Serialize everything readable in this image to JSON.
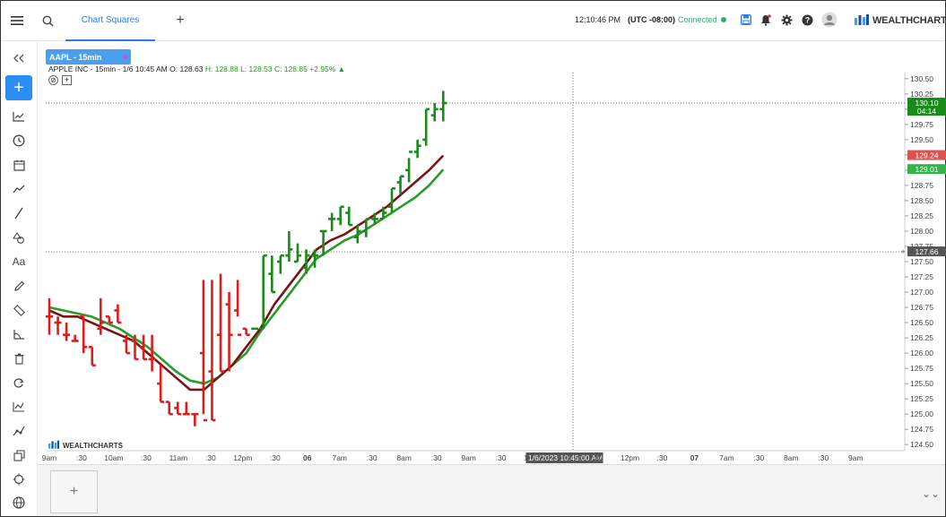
{
  "header": {
    "tab_label": "Chart Squares",
    "add_tab": "+",
    "time": "12:10:46 PM",
    "timezone": "(UTC -08:00)",
    "connection": "Connected",
    "brand": "WEALTHCHARTS"
  },
  "sidebar": {
    "items": [
      "collapse-icon",
      "add",
      "indicators-icon",
      "clock-icon",
      "calendar-icon",
      "trend-icon",
      "line-icon",
      "shapes-icon",
      "text-icon",
      "pencil-icon",
      "ruler-icon",
      "angle-icon",
      "trash-icon",
      "sync-icon",
      "chart-icon",
      "nodes-icon",
      "layers-icon",
      "crosshair-icon",
      "globe-icon"
    ]
  },
  "symbol": {
    "tab_label": "AAPL - 15min",
    "info_prefix": "APPLE INC - 15min - 1/6 10:45 AM",
    "o": "O: 128.63",
    "h": "H: 128.88",
    "l": "L: 128.53",
    "c": "C: 128.85",
    "chg": "+2.95%",
    "chg_arrow": "▲"
  },
  "chart_data": {
    "type": "bar",
    "price_axis": [
      "130.50",
      "130.25",
      "130.00",
      "129.75",
      "129.50",
      "129.25",
      "129.00",
      "128.75",
      "128.50",
      "128.25",
      "128.00",
      "127.75",
      "127.50",
      "127.25",
      "127.00",
      "126.75",
      "126.50",
      "126.25",
      "126.00",
      "125.75",
      "125.50",
      "125.25",
      "125.00",
      "124.75",
      "124.50"
    ],
    "time_axis": [
      "9am",
      ":30",
      "10am",
      ":30",
      "11am",
      ":30",
      "12pm",
      ":30",
      "06",
      "7am",
      ":30",
      "8am",
      ":30",
      "9am",
      ":30",
      "10am",
      "1/6/2023 10:45:00 AM",
      ":30",
      "12pm",
      ":30",
      "07",
      "7am",
      ":30",
      "8am",
      ":30",
      "9am"
    ],
    "price_tags": [
      {
        "value": "130.10",
        "sub": "04:14",
        "color": "#1a8a1a"
      },
      {
        "value": "129.24",
        "color": "#d9534f"
      },
      {
        "value": "129.01",
        "color": "#2fb54a"
      },
      {
        "value": "127.66",
        "color": "#555555"
      }
    ],
    "red_bars": [
      [
        126.9,
        126.3,
        126.6,
        126.6
      ],
      [
        126.6,
        126.3,
        126.5,
        126.5
      ],
      [
        126.5,
        126.2,
        126.3,
        126.3
      ],
      [
        126.3,
        126.2,
        126.2,
        126.2
      ],
      [
        126.6,
        126.0,
        126.6,
        126.1
      ],
      [
        126.1,
        125.8,
        126.1,
        125.8
      ],
      [
        126.9,
        126.3,
        126.4,
        126.5
      ],
      [
        126.6,
        126.5,
        126.6,
        126.5
      ],
      [
        126.8,
        126.5,
        126.7,
        126.5
      ],
      [
        126.3,
        126.0,
        126.2,
        126.0
      ],
      [
        126.3,
        125.9,
        126.2,
        125.9
      ],
      [
        126.3,
        125.9,
        126.1,
        125.9
      ],
      [
        126.3,
        125.7,
        125.9,
        125.9
      ],
      [
        125.8,
        125.2,
        125.5,
        125.2
      ],
      [
        125.2,
        125.0,
        125.2,
        125.0
      ],
      [
        125.2,
        125.0,
        125.1,
        125.0
      ],
      [
        125.2,
        125.0,
        125.0,
        125.0
      ],
      [
        125.0,
        124.8,
        125.0,
        125.0
      ],
      [
        127.2,
        125.0,
        126.0,
        124.9
      ],
      [
        127.2,
        124.9,
        125.7,
        124.9
      ],
      [
        127.3,
        125.7,
        126.3,
        125.7
      ],
      [
        127.0,
        125.7,
        126.8,
        126.3
      ],
      [
        127.2,
        126.6,
        126.7,
        126.3
      ],
      [
        126.4,
        126.3,
        126.4,
        126.3
      ]
    ],
    "green_bars": [
      [
        126.4,
        126.4,
        126.4,
        126.4
      ],
      [
        127.6,
        126.4,
        126.4,
        127.6
      ],
      [
        127.6,
        127.0,
        127.3,
        127.0
      ],
      [
        127.6,
        127.3,
        127.5,
        127.6
      ],
      [
        128.0,
        127.5,
        127.6,
        127.7
      ],
      [
        127.8,
        127.5,
        127.5,
        127.6
      ],
      [
        127.7,
        127.3,
        127.4,
        127.6
      ],
      [
        127.7,
        127.4,
        127.6,
        127.6
      ],
      [
        128.0,
        127.6,
        128.0,
        128.0
      ],
      [
        128.3,
        128.0,
        128.2,
        128.2
      ],
      [
        128.4,
        128.1,
        128.2,
        128.4
      ],
      [
        128.4,
        128.1,
        128.3,
        128.1
      ],
      [
        128.1,
        127.8,
        127.9,
        128.0
      ],
      [
        128.2,
        127.9,
        128.0,
        128.2
      ],
      [
        128.3,
        128.1,
        128.2,
        128.2
      ],
      [
        128.4,
        128.2,
        128.2,
        128.3
      ],
      [
        128.7,
        128.3,
        128.4,
        128.7
      ],
      [
        128.9,
        128.6,
        128.8,
        128.9
      ],
      [
        129.2,
        128.8,
        129.0,
        129.3
      ],
      [
        129.5,
        129.2,
        129.3,
        129.4
      ],
      [
        130.0,
        129.4,
        129.5,
        130.0
      ],
      [
        130.1,
        129.8,
        129.9,
        130.0
      ],
      [
        130.3,
        129.8,
        130.0,
        130.1
      ]
    ],
    "ma_fast": [
      126.7,
      126.6,
      126.6,
      126.5,
      126.4,
      126.3,
      126.2,
      126.0,
      125.8,
      125.6,
      125.4,
      125.4,
      125.6,
      125.8,
      126.1,
      126.4,
      126.8,
      127.1,
      127.4,
      127.7,
      127.85,
      127.95,
      128.1,
      128.25,
      128.4,
      128.6,
      128.8,
      129.0,
      129.24
    ],
    "ma_slow": [
      126.75,
      126.7,
      126.65,
      126.6,
      126.5,
      126.4,
      126.25,
      126.1,
      125.9,
      125.7,
      125.55,
      125.5,
      125.6,
      125.8,
      126.0,
      126.35,
      126.65,
      126.95,
      127.25,
      127.55,
      127.7,
      127.85,
      127.95,
      128.1,
      128.25,
      128.4,
      128.55,
      128.75,
      129.01
    ]
  },
  "bottom": {
    "add_label": "+",
    "expand_label": "⌄⌄"
  }
}
